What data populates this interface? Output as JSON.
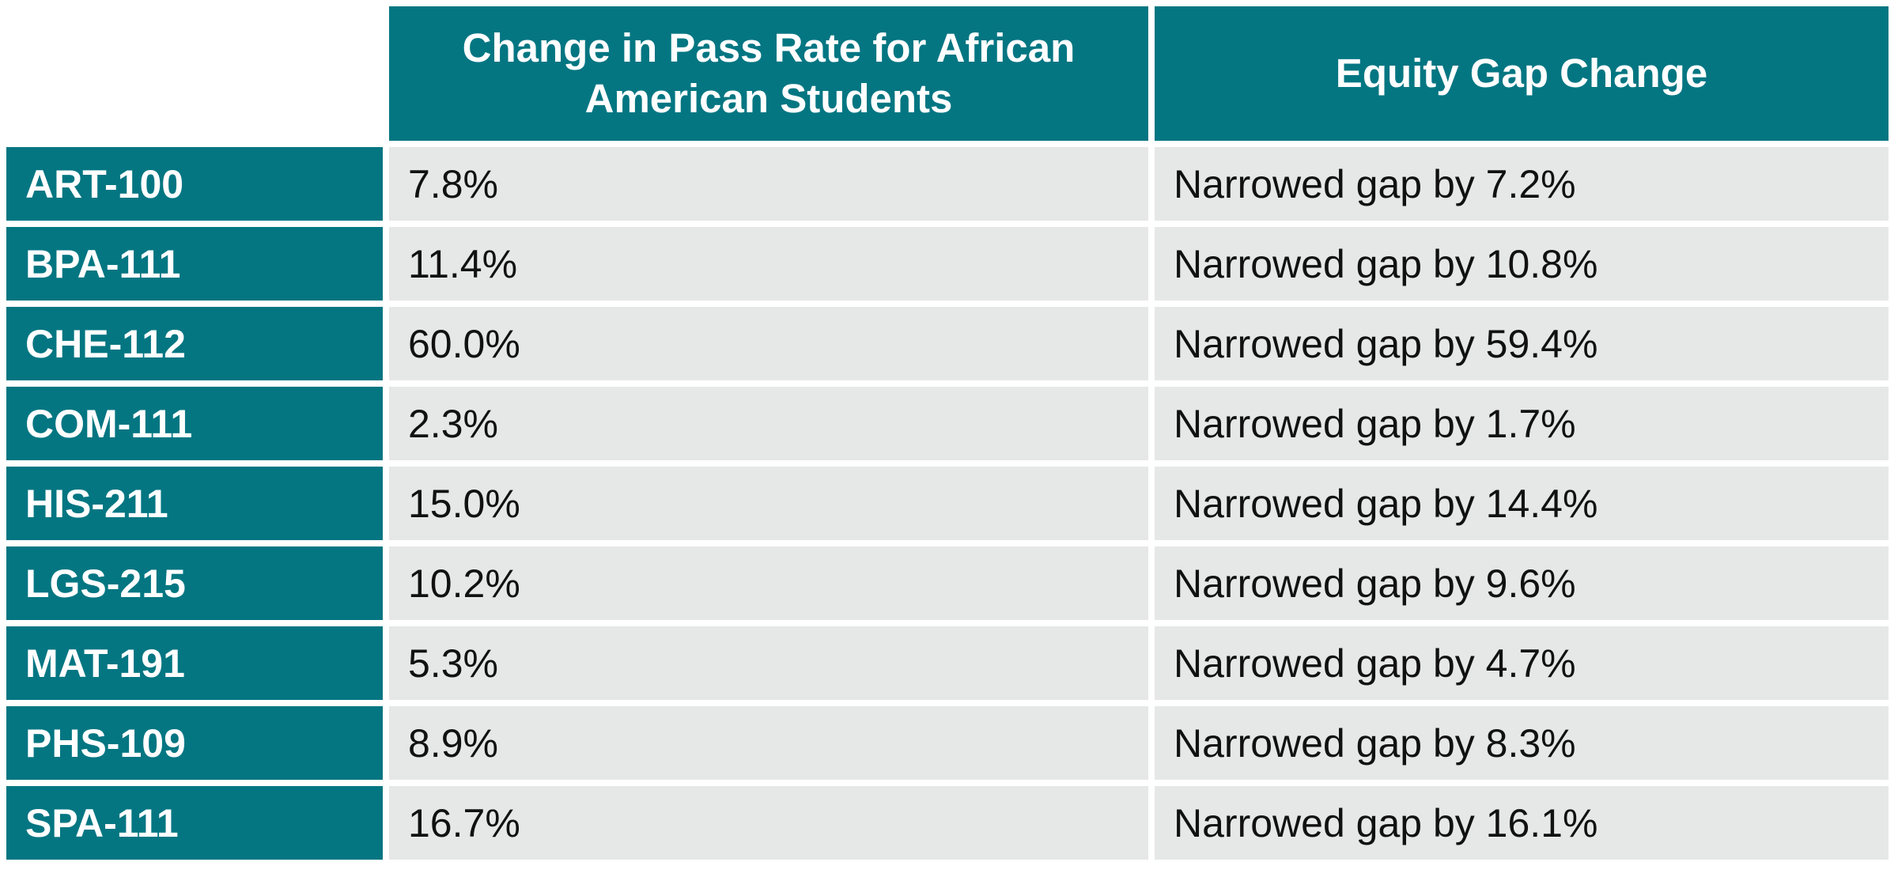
{
  "chart_data": {
    "type": "table",
    "columns": [
      "",
      "Change in Pass Rate for African American Students",
      "Equity Gap Change"
    ],
    "rows": [
      {
        "course": "ART-100",
        "pass_rate_change": "7.8%",
        "equity_gap_change": "Narrowed gap by 7.2%"
      },
      {
        "course": "BPA-111",
        "pass_rate_change": "11.4%",
        "equity_gap_change": "Narrowed gap by 10.8%"
      },
      {
        "course": "CHE-112",
        "pass_rate_change": "60.0%",
        "equity_gap_change": "Narrowed gap by 59.4%"
      },
      {
        "course": "COM-111",
        "pass_rate_change": "2.3%",
        "equity_gap_change": "Narrowed gap by 1.7%"
      },
      {
        "course": "HIS-211",
        "pass_rate_change": "15.0%",
        "equity_gap_change": "Narrowed gap by 14.4%"
      },
      {
        "course": "LGS-215",
        "pass_rate_change": "10.2%",
        "equity_gap_change": "Narrowed gap by 9.6%"
      },
      {
        "course": "MAT-191",
        "pass_rate_change": "5.3%",
        "equity_gap_change": "Narrowed gap by 4.7%"
      },
      {
        "course": "PHS-109",
        "pass_rate_change": "8.9%",
        "equity_gap_change": "Narrowed gap by 8.3%"
      },
      {
        "course": "SPA-111",
        "pass_rate_change": "16.7%",
        "equity_gap_change": "Narrowed gap by 16.1%"
      }
    ]
  },
  "colors": {
    "header_bg": "#037682",
    "cell_bg": "#e6e7e7",
    "header_text": "#ffffff",
    "cell_text": "#111111"
  }
}
